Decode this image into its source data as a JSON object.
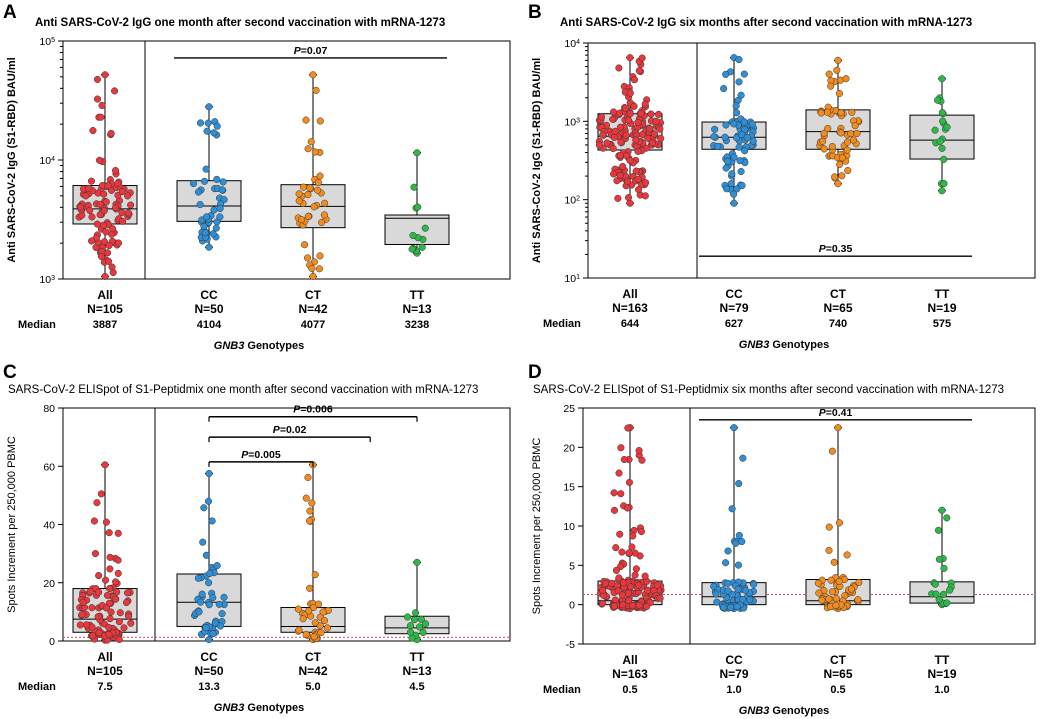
{
  "colors": {
    "All": "#e8383d",
    "CC": "#2f8fd6",
    "CT": "#f28c1e",
    "TT": "#2fb84a",
    "box": "#d9d9d9",
    "ref": "#e0405a"
  },
  "panels": [
    {
      "letter": "A",
      "title": "Anti SARS-CoV-2 IgG one month after second vaccination with mRNA-1273",
      "ylabel": "Anti SARS-CoV-2 IgG (S1-RBD) BAU/ml",
      "scale": "log",
      "yticks": [
        {
          "v": 1000,
          "b": "10",
          "e": "3"
        },
        {
          "v": 10000,
          "b": "10",
          "e": "4"
        },
        {
          "v": 100000,
          "b": "10",
          "e": "5"
        }
      ],
      "median_label": "Median",
      "xlabel_italic": "GNB3",
      "xlabel_rest": " Genotypes",
      "chart_data": {
        "type": "box",
        "ylim": [
          1000,
          100000
        ],
        "groups": [
          {
            "name": "All",
            "n": "N=105",
            "median_text": "3887",
            "median": 3887,
            "q1": 2900,
            "q3": 6100,
            "min": 1050,
            "max": 52000,
            "npoints": 105,
            "spread": 5
          },
          {
            "name": "CC",
            "n": "N=50",
            "median_text": "4104",
            "median": 4104,
            "q1": 3050,
            "q3": 6700,
            "min": 1850,
            "max": 28000,
            "npoints": 50,
            "spread": 3
          },
          {
            "name": "CT",
            "n": "N=42",
            "median_text": "4077",
            "median": 4077,
            "q1": 2700,
            "q3": 6200,
            "min": 1050,
            "max": 52000,
            "npoints": 42,
            "spread": 3
          },
          {
            "name": "TT",
            "n": "N=13",
            "median_text": "3238",
            "median": 3238,
            "q1": 1950,
            "q3": 3450,
            "min": 1650,
            "max": 11500,
            "npoints": 13,
            "spread": 2
          }
        ],
        "pvalues": [
          {
            "label": "0.07",
            "from": 1,
            "to": 3,
            "y": 72000
          }
        ]
      }
    },
    {
      "letter": "B",
      "title": "Anti SARS-CoV-2 IgG six months after second vaccination with mRNA-1273",
      "ylabel": "Anti SARS-CoV-2 IgG (S1-RBD) BAU/ml",
      "scale": "log",
      "yticks": [
        {
          "v": 10,
          "b": "10",
          "e": "1"
        },
        {
          "v": 100,
          "b": "10",
          "e": "2"
        },
        {
          "v": 1000,
          "b": "10",
          "e": "3"
        },
        {
          "v": 10000,
          "b": "10",
          "e": "4"
        }
      ],
      "median_label": "Median",
      "xlabel_italic": "GNB3",
      "xlabel_rest": " Genotypes",
      "chart_data": {
        "type": "box",
        "ylim": [
          10,
          10000
        ],
        "groups": [
          {
            "name": "All",
            "n": "N=163",
            "median_text": "644",
            "median": 644,
            "q1": 430,
            "q3": 1250,
            "min": 90,
            "max": 6500,
            "npoints": 163,
            "spread": 6
          },
          {
            "name": "CC",
            "n": "N=79",
            "median_text": "627",
            "median": 627,
            "q1": 440,
            "q3": 980,
            "min": 90,
            "max": 6500,
            "npoints": 79,
            "spread": 4
          },
          {
            "name": "CT",
            "n": "N=65",
            "median_text": "740",
            "median": 740,
            "q1": 440,
            "q3": 1400,
            "min": 160,
            "max": 6000,
            "npoints": 65,
            "spread": 4
          },
          {
            "name": "TT",
            "n": "N=19",
            "median_text": "575",
            "median": 575,
            "q1": 330,
            "q3": 1200,
            "min": 130,
            "max": 3500,
            "npoints": 19,
            "spread": 2
          }
        ],
        "pvalues": [
          {
            "label": "0.35",
            "from": 1,
            "to": 3,
            "y": 19
          }
        ]
      }
    },
    {
      "letter": "C",
      "title": "SARS-CoV-2 ELISpot of S1-Peptidmix one month after second vaccination with mRNA-1273",
      "ylabel": "Spots Increment per 250,000 PBMC",
      "scale": "linear",
      "yticks": [
        {
          "v": 0,
          "t": "0"
        },
        {
          "v": 20,
          "t": "20"
        },
        {
          "v": 40,
          "t": "40"
        },
        {
          "v": 60,
          "t": "60"
        },
        {
          "v": 80,
          "t": "80"
        }
      ],
      "median_label": "Median",
      "xlabel_italic": "GNB3",
      "xlabel_rest": " Genotypes",
      "chart_data": {
        "type": "box",
        "ylim": [
          0,
          80
        ],
        "reference_line": 1.3,
        "groups": [
          {
            "name": "All",
            "n": "N=105",
            "median_text": "7.5",
            "median": 7.5,
            "q1": 3.0,
            "q3": 18.0,
            "min": 0.3,
            "max": 60.5,
            "npoints": 105,
            "spread": 5
          },
          {
            "name": "CC",
            "n": "N=50",
            "median_text": "13.3",
            "median": 13.3,
            "q1": 5.0,
            "q3": 23.0,
            "min": 0.5,
            "max": 57.5,
            "npoints": 50,
            "spread": 3
          },
          {
            "name": "CT",
            "n": "N=42",
            "median_text": "5.0",
            "median": 5.0,
            "q1": 3.0,
            "q3": 11.5,
            "min": 0.5,
            "max": 60.5,
            "npoints": 42,
            "spread": 3
          },
          {
            "name": "TT",
            "n": "N=13",
            "median_text": "4.5",
            "median": 4.5,
            "q1": 2.5,
            "q3": 8.5,
            "min": 0.5,
            "max": 27.0,
            "npoints": 13,
            "spread": 2
          }
        ],
        "pvalues": [
          {
            "label": "0.006",
            "from": 1,
            "to": 3,
            "y": 77
          },
          {
            "label": "0.02",
            "from": 1,
            "to": 2.55,
            "y": 70
          },
          {
            "label": "0.005",
            "from": 1,
            "to": 2,
            "y": 61.5
          }
        ]
      }
    },
    {
      "letter": "D",
      "title": "SARS-CoV-2 ELISpot of S1-Peptidmix six months after second vaccination with mRNA-1273",
      "ylabel": "Spots Increment per 250,000 PBMC",
      "scale": "linear",
      "yticks": [
        {
          "v": -5,
          "t": "-5"
        },
        {
          "v": 0,
          "t": "0"
        },
        {
          "v": 5,
          "t": "5"
        },
        {
          "v": 10,
          "t": "10"
        },
        {
          "v": 15,
          "t": "15"
        },
        {
          "v": 20,
          "t": "20"
        },
        {
          "v": 25,
          "t": "25"
        }
      ],
      "median_label": "Median",
      "xlabel_italic": "GNB3",
      "xlabel_rest": " Genotypes",
      "chart_data": {
        "type": "box",
        "ylim": [
          -5,
          25
        ],
        "reference_line": 1.3,
        "groups": [
          {
            "name": "All",
            "n": "N=163",
            "median_text": "0.5",
            "median": 0.5,
            "q1": 0.0,
            "q3": 3.0,
            "min": -0.5,
            "max": 22.5,
            "npoints": 163,
            "spread": 6
          },
          {
            "name": "CC",
            "n": "N=79",
            "median_text": "1.0",
            "median": 1.0,
            "q1": 0.0,
            "q3": 2.8,
            "min": -0.5,
            "max": 22.5,
            "npoints": 79,
            "spread": 4
          },
          {
            "name": "CT",
            "n": "N=65",
            "median_text": "0.5",
            "median": 0.5,
            "q1": 0.0,
            "q3": 3.2,
            "min": -0.5,
            "max": 22.5,
            "npoints": 65,
            "spread": 4
          },
          {
            "name": "TT",
            "n": "N=19",
            "median_text": "1.0",
            "median": 1.0,
            "q1": 0.2,
            "q3": 2.9,
            "min": 0.0,
            "max": 12.0,
            "npoints": 19,
            "spread": 2
          }
        ],
        "pvalues": [
          {
            "label": "0.41",
            "from": 1,
            "to": 3,
            "y": 23.5
          }
        ]
      }
    }
  ]
}
